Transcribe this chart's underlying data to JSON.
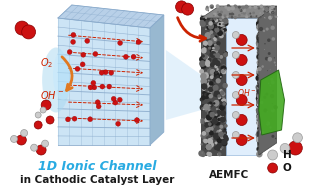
{
  "bg_color": "#ffffff",
  "title_line1": "1D Ionic Channel",
  "title_line2": "in Cathodic Catalyst Layer",
  "label_center": "AEMFC",
  "legend_H": "H",
  "legend_O": "O",
  "title_color_line1": "#29abe2",
  "title_color_line2": "#1a1a1a",
  "label_color": "#1a1a1a",
  "red": "#cc1111",
  "red_dark": "#880000",
  "gray_atom": "#cccccc",
  "gray_dark": "#999999",
  "orange_arrow": "#e07820",
  "red_arrow": "#cc2200",
  "cof_blue_bg": "#cce4f5",
  "cof_line_col": "#8aabcc",
  "cof_top_col": "#b8d0e8",
  "cof_right_col": "#98b8d0",
  "aemfc_dark": "#4a4a4a",
  "aemfc_mem": "#e0eefc",
  "green_leaf": "#44aa22",
  "cone_blue": "#c8e4f8"
}
